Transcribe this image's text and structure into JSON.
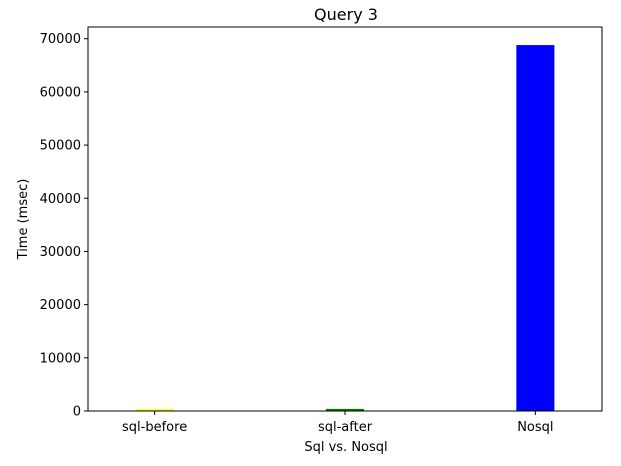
{
  "chart_data": {
    "type": "bar",
    "title": "Query 3",
    "xlabel": "Sql vs. Nosql",
    "ylabel": "Time (msec)",
    "categories": [
      "sql-before",
      "sql-after",
      "Nosql"
    ],
    "values": [
      350,
      400,
      68800
    ],
    "colors": [
      "#ffff00",
      "#008000",
      "#0000ff"
    ],
    "ylim": [
      0,
      72200
    ],
    "yticks": [
      0,
      10000,
      20000,
      30000,
      40000,
      50000,
      60000,
      70000
    ],
    "ytick_labels": [
      "0",
      "10000",
      "20000",
      "30000",
      "40000",
      "50000",
      "60000",
      "70000"
    ],
    "grid": false,
    "legend": "none"
  }
}
